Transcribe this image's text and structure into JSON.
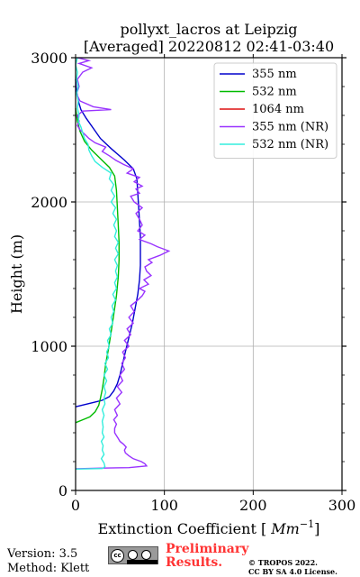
{
  "chart_data": {
    "type": "line",
    "title": "pollyxt_lacros at Leipzig",
    "subtitle": "[Averaged] 20220812 02:41-03:40",
    "xlabel": "Extinction Coefficient [Mm⁻¹]",
    "ylabel": "Height (m)",
    "xlim": [
      0,
      300
    ],
    "ylim": [
      0,
      3000
    ],
    "x_ticks": [
      "0",
      "100",
      "200",
      "300"
    ],
    "y_ticks": [
      "0",
      "1000",
      "2000",
      "3000"
    ],
    "grid": true,
    "legend_position": "top-right",
    "series": [
      {
        "name": "355 nm",
        "color": "#0000cc",
        "points": [
          [
            0,
            580
          ],
          [
            10,
            595
          ],
          [
            20,
            610
          ],
          [
            30,
            625
          ],
          [
            38,
            650
          ],
          [
            43,
            690
          ],
          [
            47,
            740
          ],
          [
            50,
            800
          ],
          [
            53,
            880
          ],
          [
            56,
            960
          ],
          [
            60,
            1060
          ],
          [
            64,
            1160
          ],
          [
            67,
            1260
          ],
          [
            70,
            1360
          ],
          [
            72,
            1460
          ],
          [
            73,
            1560
          ],
          [
            73,
            1660
          ],
          [
            73,
            1760
          ],
          [
            72,
            1860
          ],
          [
            71,
            1960
          ],
          [
            70,
            2060
          ],
          [
            69,
            2160
          ],
          [
            65,
            2230
          ],
          [
            55,
            2290
          ],
          [
            40,
            2370
          ],
          [
            28,
            2440
          ],
          [
            20,
            2510
          ],
          [
            12,
            2580
          ],
          [
            6,
            2640
          ],
          [
            3,
            2700
          ],
          [
            1,
            2770
          ],
          [
            0,
            2850
          ]
        ]
      },
      {
        "name": "532 nm",
        "color": "#00bb00",
        "points": [
          [
            0,
            470
          ],
          [
            8,
            490
          ],
          [
            16,
            510
          ],
          [
            22,
            545
          ],
          [
            26,
            590
          ],
          [
            28,
            640
          ],
          [
            30,
            700
          ],
          [
            32,
            780
          ],
          [
            34,
            880
          ],
          [
            37,
            980
          ],
          [
            40,
            1100
          ],
          [
            43,
            1220
          ],
          [
            46,
            1350
          ],
          [
            48,
            1480
          ],
          [
            49,
            1600
          ],
          [
            49,
            1720
          ],
          [
            48,
            1840
          ],
          [
            47,
            1960
          ],
          [
            46,
            2080
          ],
          [
            44,
            2180
          ],
          [
            38,
            2240
          ],
          [
            28,
            2300
          ],
          [
            18,
            2360
          ],
          [
            10,
            2420
          ],
          [
            5,
            2490
          ],
          [
            2,
            2560
          ],
          [
            0,
            2650
          ]
        ]
      },
      {
        "name": "1064 nm",
        "color": "#dd1111",
        "points": []
      },
      {
        "name": "355 nm (NR)",
        "color": "#9933ff",
        "points": [
          [
            0,
            150
          ],
          [
            30,
            155
          ],
          [
            60,
            158
          ],
          [
            80,
            170
          ],
          [
            78,
            185
          ],
          [
            74,
            200
          ],
          [
            65,
            220
          ],
          [
            60,
            240
          ],
          [
            56,
            260
          ],
          [
            55,
            280
          ],
          [
            57,
            300
          ],
          [
            54,
            320
          ],
          [
            50,
            340
          ],
          [
            48,
            360
          ],
          [
            46,
            380
          ],
          [
            44,
            400
          ],
          [
            44,
            430
          ],
          [
            46,
            460
          ],
          [
            43,
            490
          ],
          [
            47,
            520
          ],
          [
            44,
            560
          ],
          [
            50,
            600
          ],
          [
            46,
            640
          ],
          [
            52,
            680
          ],
          [
            47,
            720
          ],
          [
            53,
            760
          ],
          [
            50,
            800
          ],
          [
            55,
            840
          ],
          [
            52,
            880
          ],
          [
            56,
            920
          ],
          [
            53,
            960
          ],
          [
            60,
            1000
          ],
          [
            55,
            1040
          ],
          [
            62,
            1080
          ],
          [
            58,
            1120
          ],
          [
            65,
            1160
          ],
          [
            60,
            1200
          ],
          [
            66,
            1240
          ],
          [
            62,
            1280
          ],
          [
            70,
            1320
          ],
          [
            75,
            1350
          ],
          [
            78,
            1380
          ],
          [
            72,
            1400
          ],
          [
            82,
            1430
          ],
          [
            77,
            1460
          ],
          [
            85,
            1490
          ],
          [
            80,
            1520
          ],
          [
            78,
            1550
          ],
          [
            86,
            1580
          ],
          [
            82,
            1600
          ],
          [
            95,
            1630
          ],
          [
            105,
            1660
          ],
          [
            92,
            1690
          ],
          [
            85,
            1710
          ],
          [
            72,
            1740
          ],
          [
            78,
            1770
          ],
          [
            70,
            1800
          ],
          [
            75,
            1840
          ],
          [
            72,
            1880
          ],
          [
            68,
            1920
          ],
          [
            75,
            1960
          ],
          [
            66,
            2000
          ],
          [
            62,
            2040
          ],
          [
            72,
            2060
          ],
          [
            68,
            2090
          ],
          [
            75,
            2110
          ],
          [
            66,
            2140
          ],
          [
            72,
            2170
          ],
          [
            58,
            2200
          ],
          [
            65,
            2230
          ],
          [
            54,
            2260
          ],
          [
            45,
            2290
          ],
          [
            38,
            2320
          ],
          [
            30,
            2350
          ],
          [
            34,
            2380
          ],
          [
            22,
            2410
          ],
          [
            15,
            2440
          ],
          [
            10,
            2470
          ],
          [
            5,
            2500
          ],
          [
            2,
            2530
          ],
          [
            4,
            2560
          ],
          [
            2,
            2600
          ],
          [
            8,
            2630
          ],
          [
            40,
            2640
          ],
          [
            20,
            2660
          ],
          [
            5,
            2700
          ],
          [
            1,
            2750
          ],
          [
            4,
            2800
          ],
          [
            2,
            2850
          ],
          [
            8,
            2900
          ],
          [
            18,
            2930
          ],
          [
            4,
            2960
          ],
          [
            15,
            2980
          ],
          [
            2,
            3000
          ]
        ]
      },
      {
        "name": "532 nm (NR)",
        "color": "#33eedd",
        "points": [
          [
            0,
            148
          ],
          [
            30,
            152
          ],
          [
            33,
            165
          ],
          [
            32,
            190
          ],
          [
            29,
            220
          ],
          [
            32,
            250
          ],
          [
            30,
            280
          ],
          [
            31,
            310
          ],
          [
            29,
            340
          ],
          [
            32,
            370
          ],
          [
            30,
            400
          ],
          [
            31,
            440
          ],
          [
            30,
            480
          ],
          [
            32,
            520
          ],
          [
            30,
            560
          ],
          [
            33,
            600
          ],
          [
            32,
            640
          ],
          [
            34,
            680
          ],
          [
            32,
            720
          ],
          [
            35,
            760
          ],
          [
            32,
            800
          ],
          [
            36,
            840
          ],
          [
            33,
            880
          ],
          [
            37,
            920
          ],
          [
            35,
            960
          ],
          [
            38,
            1000
          ],
          [
            36,
            1040
          ],
          [
            40,
            1080
          ],
          [
            38,
            1120
          ],
          [
            42,
            1160
          ],
          [
            40,
            1200
          ],
          [
            43,
            1240
          ],
          [
            41,
            1280
          ],
          [
            45,
            1320
          ],
          [
            42,
            1360
          ],
          [
            46,
            1400
          ],
          [
            44,
            1440
          ],
          [
            47,
            1480
          ],
          [
            45,
            1520
          ],
          [
            47,
            1560
          ],
          [
            44,
            1600
          ],
          [
            48,
            1640
          ],
          [
            45,
            1680
          ],
          [
            48,
            1720
          ],
          [
            44,
            1760
          ],
          [
            46,
            1800
          ],
          [
            43,
            1840
          ],
          [
            46,
            1880
          ],
          [
            42,
            1920
          ],
          [
            45,
            1960
          ],
          [
            40,
            2000
          ],
          [
            44,
            2040
          ],
          [
            40,
            2080
          ],
          [
            43,
            2120
          ],
          [
            38,
            2160
          ],
          [
            40,
            2200
          ],
          [
            30,
            2240
          ],
          [
            22,
            2280
          ],
          [
            18,
            2320
          ],
          [
            15,
            2360
          ],
          [
            14,
            2400
          ],
          [
            10,
            2440
          ],
          [
            8,
            2480
          ],
          [
            6,
            2520
          ],
          [
            3,
            2560
          ],
          [
            4,
            2600
          ],
          [
            2,
            2650
          ],
          [
            3,
            2700
          ],
          [
            1,
            2750
          ],
          [
            3,
            2800
          ],
          [
            1,
            2850
          ],
          [
            2,
            2900
          ],
          [
            0,
            2950
          ],
          [
            2,
            3000
          ]
        ]
      }
    ]
  },
  "footer": {
    "version": "Version: 3.5",
    "method": "Method: Klett",
    "preliminary_line1": "Preliminary",
    "preliminary_line2": "Results.",
    "license_line1": "© TROPOS 2022.",
    "license_line2": "CC BY SA 4.0 License."
  }
}
